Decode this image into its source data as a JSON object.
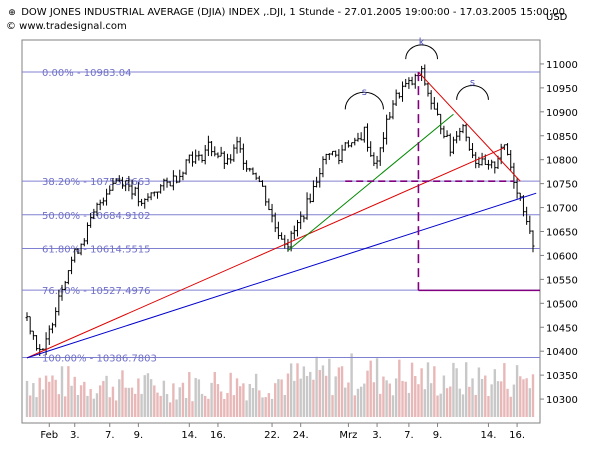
{
  "header": {
    "title": "DOW JONES INDUSTRIAL AVERAGE (DJIA) INDEX ,.DJI, 1 Stunde - 27.01.2005 19:00:00 - 17.03.2005 15:00:00",
    "currency": "USD",
    "watermark": "© www.tradesignal.com",
    "bullet_icon": "crosshair-icon"
  },
  "chart_data": {
    "type": "line",
    "subtype": "ohlc-bars-hourly",
    "title": "DOW JONES INDUSTRIAL AVERAGE (DJIA) INDEX ,.DJI, 1 Stunde - 27.01.2005 19:00:00 - 17.03.2005 15:00:00",
    "xlabel": "",
    "ylabel": "USD",
    "ylim": [
      10250,
      11050
    ],
    "grid": false,
    "yticks": [
      10300,
      10350,
      10400,
      10450,
      10500,
      10550,
      10600,
      10650,
      10700,
      10750,
      10800,
      10850,
      10900,
      10950,
      11000
    ],
    "xticks": [
      {
        "label": "Feb",
        "bar": 7
      },
      {
        "label": "3.",
        "bar": 15
      },
      {
        "label": "7.",
        "bar": 26
      },
      {
        "label": "9.",
        "bar": 35
      },
      {
        "label": "14.",
        "bar": 51
      },
      {
        "label": "16.",
        "bar": 60
      },
      {
        "label": "22.",
        "bar": 77
      },
      {
        "label": "24.",
        "bar": 86
      },
      {
        "label": "Mrz",
        "bar": 101
      },
      {
        "label": "3.",
        "bar": 110
      },
      {
        "label": "7.",
        "bar": 120
      },
      {
        "label": "9.",
        "bar": 129
      },
      {
        "label": "14.",
        "bar": 145
      },
      {
        "label": "16.",
        "bar": 154
      }
    ],
    "bar_count": 160,
    "price_path": [
      [
        0,
        10470
      ],
      [
        3,
        10415
      ],
      [
        5,
        10395
      ],
      [
        7,
        10440
      ],
      [
        10,
        10520
      ],
      [
        14,
        10590
      ],
      [
        18,
        10640
      ],
      [
        22,
        10700
      ],
      [
        25,
        10735
      ],
      [
        28,
        10760
      ],
      [
        31,
        10755
      ],
      [
        34,
        10730
      ],
      [
        36,
        10700
      ],
      [
        38,
        10720
      ],
      [
        40,
        10735
      ],
      [
        44,
        10750
      ],
      [
        48,
        10770
      ],
      [
        51,
        10810
      ],
      [
        54,
        10800
      ],
      [
        57,
        10830
      ],
      [
        60,
        10810
      ],
      [
        63,
        10790
      ],
      [
        66,
        10830
      ],
      [
        69,
        10790
      ],
      [
        72,
        10770
      ],
      [
        74,
        10740
      ],
      [
        76,
        10700
      ],
      [
        78,
        10660
      ],
      [
        80,
        10640
      ],
      [
        82,
        10625
      ],
      [
        84,
        10650
      ],
      [
        87,
        10690
      ],
      [
        90,
        10740
      ],
      [
        92,
        10780
      ],
      [
        95,
        10820
      ],
      [
        98,
        10800
      ],
      [
        100,
        10840
      ],
      [
        103,
        10830
      ],
      [
        106,
        10860
      ],
      [
        108,
        10810
      ],
      [
        110,
        10790
      ],
      [
        112,
        10850
      ],
      [
        115,
        10920
      ],
      [
        118,
        10950
      ],
      [
        121,
        10960
      ],
      [
        123,
        10975
      ],
      [
        124,
        10980
      ],
      [
        126,
        10940
      ],
      [
        128,
        10900
      ],
      [
        131,
        10860
      ],
      [
        133,
        10820
      ],
      [
        135,
        10860
      ],
      [
        137,
        10870
      ],
      [
        139,
        10830
      ],
      [
        141,
        10800
      ],
      [
        143,
        10790
      ],
      [
        145,
        10780
      ],
      [
        147,
        10790
      ],
      [
        149,
        10830
      ],
      [
        151,
        10810
      ],
      [
        153,
        10760
      ],
      [
        155,
        10720
      ],
      [
        157,
        10680
      ],
      [
        158,
        10640
      ],
      [
        159,
        10630
      ]
    ],
    "volume_profile": [
      [
        0,
        0.55
      ],
      [
        20,
        0.5
      ],
      [
        40,
        0.45
      ],
      [
        60,
        0.5
      ],
      [
        80,
        0.55
      ],
      [
        100,
        0.65
      ],
      [
        120,
        0.6
      ],
      [
        140,
        0.55
      ],
      [
        159,
        0.6
      ]
    ],
    "fibonacci_levels": [
      {
        "label": "0.00% - 10983.04",
        "value": 10983.04
      },
      {
        "label": "38.20% - 10755.2663",
        "value": 10755.2663
      },
      {
        "label": "50.00% - 10684.9102",
        "value": 10684.9102
      },
      {
        "label": "61.80% - 10614.5515",
        "value": 10614.5515
      },
      {
        "label": "76.40% - 10527.4976",
        "value": 10527.4976
      },
      {
        "label": "100.00% - 10386.7803",
        "value": 10386.7803
      }
    ],
    "trendlines": [
      {
        "color": "#dd0000",
        "from": [
          0,
          10386
        ],
        "to": [
          150,
          10825
        ]
      },
      {
        "color": "#0000cc",
        "from": [
          0,
          10386
        ],
        "to": [
          160,
          10730
        ]
      },
      {
        "color": "#008800",
        "from": [
          82,
          10610
        ],
        "to": [
          134,
          10895
        ]
      },
      {
        "color": "#dd0000",
        "from": [
          123,
          10983
        ],
        "to": [
          155,
          10755
        ]
      }
    ],
    "neckline": {
      "from": [
        100,
        10755
      ],
      "to": [
        153,
        10755
      ],
      "color": "#800080"
    },
    "target_projection": {
      "vertical_bar": 123,
      "from_value": 10983,
      "to_value": 10527,
      "end_bar": 160,
      "color": "#800080"
    },
    "annotations": [
      {
        "text": "s",
        "bar": 106,
        "value": 10935
      },
      {
        "text": "k",
        "bar": 124,
        "value": 11040
      },
      {
        "text": "s",
        "bar": 140,
        "value": 10955
      }
    ],
    "arcs": [
      {
        "bar": 106,
        "value": 10905,
        "halfwidth_bars": 6
      },
      {
        "bar": 124,
        "value": 11010,
        "halfwidth_bars": 5
      },
      {
        "bar": 140,
        "value": 10925,
        "halfwidth_bars": 5
      }
    ]
  }
}
